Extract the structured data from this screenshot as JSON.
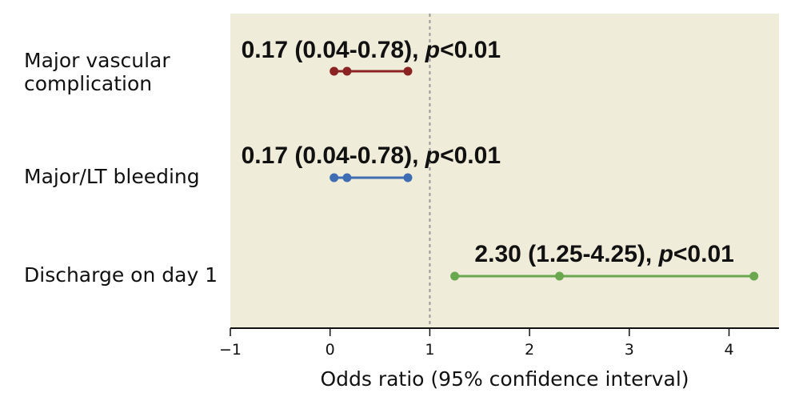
{
  "chart_data": {
    "type": "forest",
    "xlabel": "Odds ratio (95% confidence interval)",
    "xlim": [
      -1,
      4.5
    ],
    "xticks": [
      -1,
      0,
      1,
      2,
      3,
      4
    ],
    "xtick_labels": [
      "−1",
      "0",
      "1",
      "2",
      "3",
      "4"
    ],
    "reference_line": 1,
    "reference_line_style": "dashed",
    "colors": {
      "background": "#f0ecda",
      "reference": "#999999"
    },
    "rows": [
      {
        "label_lines": [
          "Major vascular",
          "complication"
        ],
        "or": 0.17,
        "ci_low": 0.04,
        "ci_high": 0.78,
        "color": "#8b2323",
        "annotation_main": "0.17 (0.04-0.78), ",
        "annotation_p": "p",
        "annotation_tail": "<0.01"
      },
      {
        "label_lines": [
          "Major/LT bleeding"
        ],
        "or": 0.17,
        "ci_low": 0.04,
        "ci_high": 0.78,
        "color": "#3f6db3",
        "annotation_main": "0.17 (0.04-0.78), ",
        "annotation_p": "p",
        "annotation_tail": "<0.01"
      },
      {
        "label_lines": [
          "Discharge on day 1"
        ],
        "or": 2.3,
        "ci_low": 1.25,
        "ci_high": 4.25,
        "color": "#6aa84f",
        "annotation_main": "2.30 (1.25-4.25), ",
        "annotation_p": "p",
        "annotation_tail": "<0.01"
      }
    ]
  }
}
